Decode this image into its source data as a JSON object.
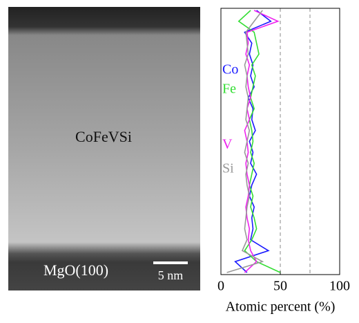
{
  "image": {
    "label": "CoFeVSi",
    "substrate": "MgO(100)",
    "scale_bar": "5 nm"
  },
  "chart_data": {
    "type": "line",
    "orientation": "vertical",
    "xlabel": "Atomic percent (%)",
    "xlim": [
      0,
      100
    ],
    "xticks": [
      0,
      50,
      100
    ],
    "xgrid": [
      50,
      75
    ],
    "categories": [
      null,
      null,
      null,
      null,
      null,
      null,
      null,
      null,
      null,
      null,
      null,
      null,
      null,
      null,
      null,
      null,
      null,
      null,
      null,
      null,
      null,
      null,
      null,
      null,
      null
    ],
    "series": [
      {
        "name": "Co",
        "color": "#1a1aff",
        "values": [
          30,
          42,
          20,
          26,
          24,
          27,
          25,
          28,
          23,
          27,
          26,
          29,
          24,
          27,
          25,
          30,
          26,
          24,
          28,
          26,
          27,
          25,
          40,
          12,
          22
        ]
      },
      {
        "name": "Fe",
        "color": "#33dd33",
        "values": [
          25,
          15,
          28,
          30,
          32,
          26,
          29,
          27,
          25,
          28,
          24,
          26,
          27,
          25,
          28,
          26,
          24,
          27,
          25,
          28,
          30,
          26,
          20,
          30,
          50
        ]
      },
      {
        "name": "V",
        "color": "#ee22ee",
        "values": [
          28,
          48,
          22,
          23,
          21,
          24,
          22,
          23,
          25,
          22,
          24,
          20,
          22,
          23,
          21,
          22,
          24,
          23,
          21,
          22,
          24,
          23,
          25,
          30,
          20
        ]
      },
      {
        "name": "Si",
        "color": "#999999",
        "values": [
          35,
          28,
          21,
          22,
          23,
          20,
          22,
          21,
          23,
          22,
          21,
          24,
          22,
          20,
          23,
          21,
          22,
          24,
          22,
          21,
          20,
          22,
          18,
          35,
          5
        ]
      }
    ]
  }
}
